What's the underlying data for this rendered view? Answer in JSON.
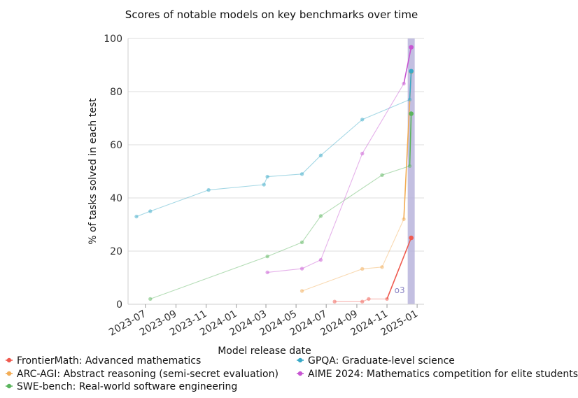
{
  "chart_data": {
    "type": "line",
    "title": "Scores of notable models on key benchmarks over time",
    "xlabel": "Model release date",
    "ylabel": "% of tasks solved in each test",
    "ylim": [
      0,
      100
    ],
    "xlim": [
      "2023-05-27",
      "2025-01-15"
    ],
    "y_ticks": [
      0,
      20,
      40,
      60,
      80,
      100
    ],
    "x_ticks": [
      {
        "date": "2023-07-01",
        "label": "2023-07"
      },
      {
        "date": "2023-09-01",
        "label": "2023-09"
      },
      {
        "date": "2023-11-01",
        "label": "2023-11"
      },
      {
        "date": "2024-01-01",
        "label": "2024-01"
      },
      {
        "date": "2024-03-01",
        "label": "2024-03"
      },
      {
        "date": "2024-05-01",
        "label": "2024-05"
      },
      {
        "date": "2024-07-01",
        "label": "2024-07"
      },
      {
        "date": "2024-09-01",
        "label": "2024-09"
      },
      {
        "date": "2024-11-01",
        "label": "2024-11"
      },
      {
        "date": "2025-01-01",
        "label": "2025-01"
      }
    ],
    "grid": "horizontal",
    "legend_position": "bottom",
    "highlight": {
      "label": "o3",
      "date": "2024-12-20",
      "color": "#b8b4dc"
    },
    "series": [
      {
        "name": "FrontierMath: Advanced mathematics",
        "color": "#ef5a4f",
        "x": [
          "2024-07-18",
          "2024-09-12",
          "2024-09-25",
          "2024-11-01",
          "2024-12-20"
        ],
        "y": [
          1,
          1,
          2,
          2,
          25
        ]
      },
      {
        "name": "ARC-AGI: Abstract reasoning (semi-secret evaluation)",
        "color": "#f2ac55",
        "x": [
          "2024-05-13",
          "2024-09-12",
          "2024-10-22",
          "2024-12-05",
          "2024-12-20"
        ],
        "y": [
          5,
          13.3,
          14,
          32,
          87.5
        ]
      },
      {
        "name": "SWE-bench: Real-world software engineering",
        "color": "#5bb55e",
        "x": [
          "2023-07-11",
          "2024-03-04",
          "2024-05-13",
          "2024-06-20",
          "2024-10-22",
          "2024-12-17",
          "2024-12-20"
        ],
        "y": [
          2,
          18,
          23.3,
          33.2,
          48.6,
          52,
          71.7
        ]
      },
      {
        "name": "GPQA: Graduate-level science",
        "color": "#3aa9c7",
        "x": [
          "2023-06-13",
          "2023-07-11",
          "2023-11-06",
          "2024-02-26",
          "2024-03-04",
          "2024-05-13",
          "2024-06-20",
          "2024-09-12",
          "2024-12-17",
          "2024-12-20"
        ],
        "y": [
          33,
          35,
          43,
          45,
          48,
          49,
          56,
          69.5,
          77,
          87.7
        ]
      },
      {
        "name": "AIME 2024: Mathematics competition for elite students",
        "color": "#c755d2",
        "x": [
          "2024-03-04",
          "2024-05-13",
          "2024-06-20",
          "2024-09-12",
          "2024-12-05",
          "2024-12-20"
        ],
        "y": [
          12,
          13.4,
          16.7,
          56.7,
          83,
          96.7
        ]
      }
    ]
  }
}
